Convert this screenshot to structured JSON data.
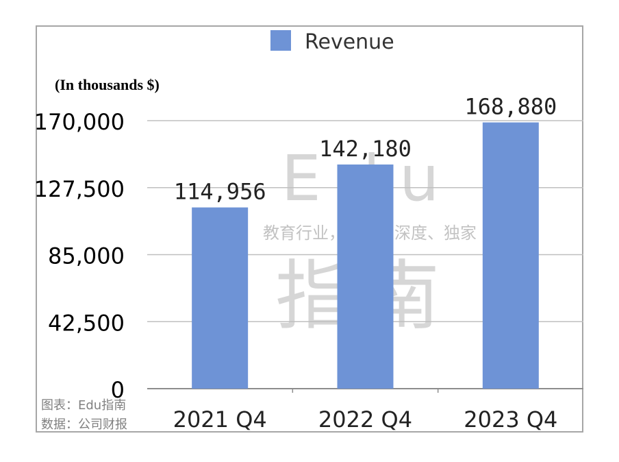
{
  "chart_data": {
    "type": "bar",
    "categories": [
      "2021 Q4",
      "2022 Q4",
      "2023 Q4"
    ],
    "series": [
      {
        "name": "Revenue",
        "values": [
          114956,
          142180,
          168880
        ],
        "color": "#6e93d6"
      }
    ],
    "data_labels": [
      "114,956",
      "142,180",
      "168,880"
    ],
    "unit_label": "(In thousands $)",
    "yticks": [
      "0",
      "42,500",
      "85,000",
      "127,500",
      "170,000"
    ],
    "ylim": [
      0,
      170000
    ],
    "grid": true,
    "legend": "top-center"
  },
  "notes": {
    "chart_source": "图表：Edu指南",
    "data_source": "数据：公司财报"
  },
  "watermark": {
    "title": "Edu",
    "tagline": "教育行业，前沿、深度、独家",
    "name": "指南"
  },
  "colors": {
    "bar": "#6e93d6",
    "grid": "#bfbfbf",
    "frame": "#a6a6a6"
  }
}
